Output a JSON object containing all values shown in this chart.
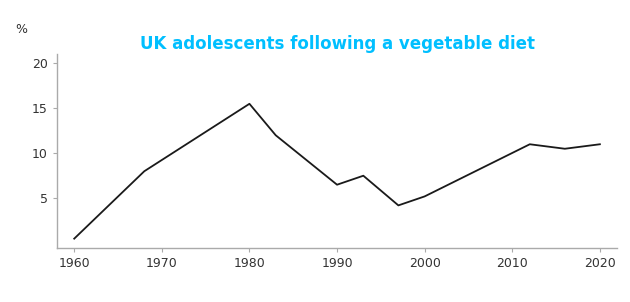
{
  "title": "UK adolescents following a vegetable diet",
  "title_color": "#00BFFF",
  "ylabel": "%",
  "x_values": [
    1960,
    1968,
    1980,
    1983,
    1990,
    1993,
    1997,
    2000,
    2012,
    2016,
    2020
  ],
  "y_values": [
    0.5,
    8,
    15.5,
    12,
    6.5,
    7.5,
    4.2,
    5.2,
    11,
    10.5,
    11
  ],
  "xlim": [
    1958,
    2022
  ],
  "ylim": [
    -0.5,
    21
  ],
  "yticks": [
    5,
    10,
    15,
    20
  ],
  "xticks": [
    1960,
    1970,
    1980,
    1990,
    2000,
    2010,
    2020
  ],
  "line_color": "#1a1a1a",
  "line_width": 1.3,
  "background_color": "#ffffff",
  "title_fontsize": 12,
  "axis_fontsize": 9,
  "spine_color": "#aaaaaa"
}
